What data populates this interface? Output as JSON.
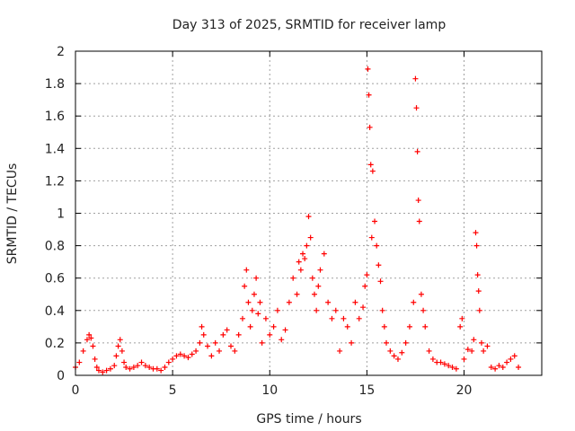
{
  "chart_data": {
    "type": "scatter",
    "title": "Day 313 of 2025, SRMTID for receiver lamp",
    "xlabel": "GPS time / hours",
    "ylabel": "SRMTID / TECUs",
    "xlim": [
      0,
      24
    ],
    "ylim": [
      0,
      2
    ],
    "xticks": [
      0,
      5,
      10,
      15,
      20
    ],
    "xtick_labels": [
      "0",
      "5",
      "10",
      "15",
      "20"
    ],
    "yticks": [
      0,
      0.2,
      0.4,
      0.6,
      0.8,
      1,
      1.2,
      1.4,
      1.6,
      1.8,
      2
    ],
    "ytick_labels": [
      "0",
      "0.2",
      "0.4",
      "0.6",
      "0.8",
      "1",
      "1.2",
      "1.4",
      "1.6",
      "1.8",
      "2"
    ],
    "grid": true,
    "marker": "plus",
    "marker_color": "#ff0000",
    "series": [
      {
        "name": "SRMTID",
        "x": [
          0.0,
          0.2,
          0.4,
          0.6,
          0.7,
          0.8,
          0.9,
          1.0,
          1.1,
          1.2,
          1.4,
          1.6,
          1.8,
          2.0,
          2.1,
          2.2,
          2.3,
          2.4,
          2.5,
          2.6,
          2.8,
          3.0,
          3.2,
          3.4,
          3.6,
          3.8,
          4.0,
          4.2,
          4.4,
          4.6,
          4.8,
          5.0,
          5.2,
          5.4,
          5.6,
          5.8,
          6.0,
          6.2,
          6.4,
          6.5,
          6.6,
          6.8,
          7.0,
          7.2,
          7.4,
          7.6,
          7.8,
          8.0,
          8.2,
          8.4,
          8.6,
          8.7,
          8.8,
          8.9,
          9.0,
          9.1,
          9.2,
          9.3,
          9.4,
          9.5,
          9.6,
          9.8,
          10.0,
          10.2,
          10.4,
          10.6,
          10.8,
          11.0,
          11.2,
          11.4,
          11.5,
          11.6,
          11.7,
          11.8,
          11.9,
          12.0,
          12.1,
          12.2,
          12.3,
          12.4,
          12.5,
          12.6,
          12.8,
          13.0,
          13.2,
          13.4,
          13.6,
          13.8,
          14.0,
          14.2,
          14.4,
          14.6,
          14.8,
          14.9,
          15.0,
          15.05,
          15.1,
          15.15,
          15.2,
          15.25,
          15.3,
          15.4,
          15.5,
          15.6,
          15.7,
          15.8,
          15.9,
          16.0,
          16.2,
          16.4,
          16.6,
          16.8,
          17.0,
          17.2,
          17.4,
          17.5,
          17.55,
          17.6,
          17.65,
          17.7,
          17.8,
          17.9,
          18.0,
          18.2,
          18.4,
          18.6,
          18.8,
          19.0,
          19.2,
          19.4,
          19.6,
          19.8,
          19.9,
          20.0,
          20.2,
          20.4,
          20.5,
          20.6,
          20.65,
          20.7,
          20.75,
          20.8,
          20.9,
          21.0,
          21.2,
          21.4,
          21.6,
          21.8,
          22.0,
          22.2,
          22.4,
          22.6,
          22.8
        ],
        "y": [
          0.05,
          0.08,
          0.15,
          0.22,
          0.25,
          0.23,
          0.18,
          0.1,
          0.05,
          0.03,
          0.02,
          0.03,
          0.04,
          0.06,
          0.12,
          0.18,
          0.22,
          0.15,
          0.08,
          0.05,
          0.04,
          0.05,
          0.06,
          0.08,
          0.06,
          0.05,
          0.04,
          0.04,
          0.03,
          0.05,
          0.08,
          0.1,
          0.12,
          0.13,
          0.12,
          0.11,
          0.13,
          0.15,
          0.2,
          0.3,
          0.25,
          0.18,
          0.12,
          0.2,
          0.15,
          0.25,
          0.28,
          0.18,
          0.15,
          0.25,
          0.35,
          0.55,
          0.65,
          0.45,
          0.3,
          0.4,
          0.5,
          0.6,
          0.38,
          0.45,
          0.2,
          0.35,
          0.25,
          0.3,
          0.4,
          0.22,
          0.28,
          0.45,
          0.6,
          0.5,
          0.7,
          0.65,
          0.75,
          0.72,
          0.8,
          0.98,
          0.85,
          0.6,
          0.5,
          0.4,
          0.55,
          0.65,
          0.75,
          0.45,
          0.35,
          0.4,
          0.15,
          0.35,
          0.3,
          0.2,
          0.45,
          0.35,
          0.42,
          0.55,
          0.62,
          1.89,
          1.73,
          1.53,
          1.3,
          0.85,
          1.26,
          0.95,
          0.8,
          0.68,
          0.58,
          0.4,
          0.3,
          0.2,
          0.15,
          0.12,
          0.1,
          0.14,
          0.2,
          0.3,
          0.45,
          1.83,
          1.65,
          1.38,
          1.08,
          0.95,
          0.5,
          0.4,
          0.3,
          0.15,
          0.1,
          0.08,
          0.08,
          0.07,
          0.06,
          0.05,
          0.04,
          0.3,
          0.35,
          0.1,
          0.16,
          0.15,
          0.22,
          0.88,
          0.8,
          0.62,
          0.52,
          0.4,
          0.2,
          0.15,
          0.18,
          0.05,
          0.04,
          0.06,
          0.05,
          0.08,
          0.1,
          0.12,
          0.05
        ]
      }
    ]
  }
}
